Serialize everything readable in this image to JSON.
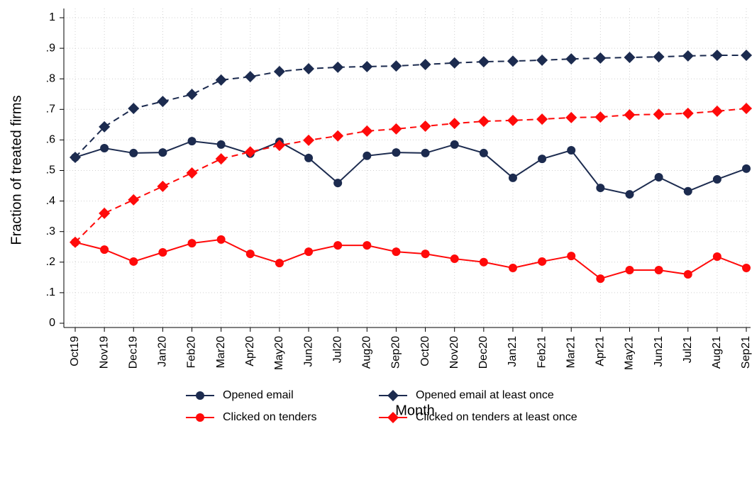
{
  "chart_data": {
    "type": "line",
    "xlabel": "Month",
    "ylabel": "Fraction of treated firms",
    "categories": [
      "Oct19",
      "Nov19",
      "Dec19",
      "Jan20",
      "Feb20",
      "Mar20",
      "Apr20",
      "May20",
      "Jun20",
      "Jul20",
      "Aug20",
      "Sep20",
      "Oct20",
      "Nov20",
      "Dec20",
      "Jan21",
      "Feb21",
      "Mar21",
      "Apr21",
      "May21",
      "Jun21",
      "Jul21",
      "Aug21",
      "Sep21"
    ],
    "ylim": [
      0,
      1
    ],
    "yticks": [
      0,
      {
        "value": 0.1,
        "label": ".1"
      },
      {
        "value": 0.2,
        "label": ".2"
      },
      {
        "value": 0.3,
        "label": ".3"
      },
      {
        "value": 0.4,
        "label": ".4"
      },
      {
        "value": 0.5,
        "label": ".5"
      },
      {
        "value": 0.6,
        "label": ".6"
      },
      {
        "value": 0.7,
        "label": ".7"
      },
      {
        "value": 0.8,
        "label": ".8"
      },
      {
        "value": 0.9,
        "label": ".9"
      },
      1
    ],
    "grid": true,
    "series": [
      {
        "name": "Opened email",
        "color": "#1c2b4f",
        "marker": "circle",
        "dashed": false,
        "values": [
          0.543,
          0.573,
          0.557,
          0.559,
          0.596,
          0.585,
          0.555,
          0.594,
          0.541,
          0.459,
          0.548,
          0.559,
          0.557,
          0.585,
          0.557,
          0.476,
          0.538,
          0.566,
          0.443,
          0.422,
          0.478,
          0.432,
          0.471,
          0.506
        ]
      },
      {
        "name": "Clicked on tenders",
        "color": "#ff0a0a",
        "marker": "circle",
        "dashed": false,
        "values": [
          0.265,
          0.241,
          0.202,
          0.232,
          0.262,
          0.274,
          0.227,
          0.197,
          0.234,
          0.255,
          0.255,
          0.234,
          0.227,
          0.211,
          0.2,
          0.181,
          0.202,
          0.22,
          0.146,
          0.174,
          0.174,
          0.16,
          0.218,
          0.181
        ]
      },
      {
        "name": "Opened email at least once",
        "color": "#1c2b4f",
        "marker": "diamond",
        "dashed": true,
        "values": [
          0.543,
          0.643,
          0.703,
          0.726,
          0.749,
          0.796,
          0.807,
          0.824,
          0.833,
          0.838,
          0.84,
          0.842,
          0.847,
          0.852,
          0.856,
          0.858,
          0.861,
          0.865,
          0.868,
          0.87,
          0.872,
          0.875,
          0.877,
          0.877
        ]
      },
      {
        "name": "Clicked on tenders at least once",
        "color": "#ff0a0a",
        "marker": "diamond",
        "dashed": true,
        "values": [
          0.265,
          0.36,
          0.404,
          0.448,
          0.492,
          0.538,
          0.561,
          0.582,
          0.599,
          0.613,
          0.629,
          0.636,
          0.645,
          0.654,
          0.661,
          0.664,
          0.668,
          0.673,
          0.675,
          0.682,
          0.684,
          0.687,
          0.694,
          0.703
        ]
      }
    ]
  }
}
